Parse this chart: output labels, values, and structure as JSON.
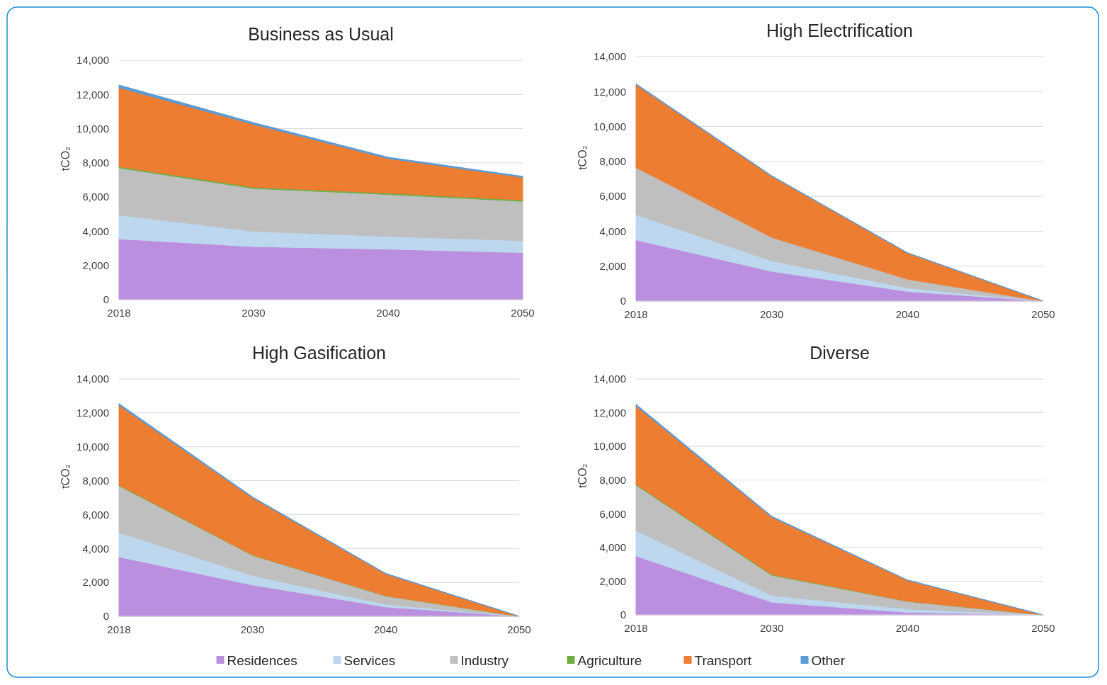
{
  "chart_data": [
    {
      "type": "area",
      "stacked": true,
      "title": "Business as Usual",
      "ylabel": "tCO₂",
      "categories": [
        "2018",
        "2030",
        "2040",
        "2050"
      ],
      "ylim": [
        0,
        14000
      ],
      "yticks": [
        {
          "value": 0,
          "label": "0"
        },
        {
          "value": 2000,
          "label": "2,000"
        },
        {
          "value": 4000,
          "label": "4,000"
        },
        {
          "value": 6000,
          "label": "6,000"
        },
        {
          "value": 8000,
          "label": "8,000"
        },
        {
          "value": 10000,
          "label": "10,000"
        },
        {
          "value": 12000,
          "label": "12,000"
        },
        {
          "value": 14000,
          "label": "14,000"
        }
      ],
      "grid": "y",
      "legend": "bottom",
      "series": [
        {
          "name": "Residences",
          "color": "#bb8fdf",
          "values": [
            3550,
            3100,
            2950,
            2750
          ]
        },
        {
          "name": "Services",
          "color": "#bdd7ee",
          "values": [
            1400,
            900,
            750,
            700
          ]
        },
        {
          "name": "Industry",
          "color": "#bfbfbf",
          "values": [
            2750,
            2500,
            2450,
            2300
          ]
        },
        {
          "name": "Agriculture",
          "color": "#70ad47",
          "values": [
            80,
            80,
            80,
            80
          ]
        },
        {
          "name": "Transport",
          "color": "#ed7d31",
          "values": [
            4620,
            3670,
            2020,
            1320
          ]
        },
        {
          "name": "Other",
          "color": "#5b9bd5",
          "values": [
            150,
            100,
            80,
            60
          ]
        }
      ]
    },
    {
      "type": "area",
      "stacked": true,
      "title": "High Electrification",
      "ylabel": "tCO₂",
      "categories": [
        "2018",
        "2030",
        "2040",
        "2050"
      ],
      "ylim": [
        0,
        14000
      ],
      "yticks": [
        {
          "value": 0,
          "label": "0"
        },
        {
          "value": 2000,
          "label": "2,000"
        },
        {
          "value": 4000,
          "label": "4,000"
        },
        {
          "value": 6000,
          "label": "6,000"
        },
        {
          "value": 8000,
          "label": "8,000"
        },
        {
          "value": 10000,
          "label": "10,000"
        },
        {
          "value": 12000,
          "label": "12,000"
        },
        {
          "value": 14000,
          "label": "14,000"
        }
      ],
      "grid": "y",
      "series": [
        {
          "color": "#bb8fdf",
          "values": [
            3500,
            1700,
            550,
            0
          ]
        },
        {
          "color": "#bdd7ee",
          "values": [
            1450,
            600,
            200,
            0
          ]
        },
        {
          "color": "#bfbfbf",
          "values": [
            2700,
            1350,
            500,
            0
          ]
        },
        {
          "color": "#ed7d31",
          "values": [
            4750,
            3500,
            1500,
            0
          ]
        },
        {
          "color": "#5b9bd5",
          "values": [
            50,
            30,
            20,
            0
          ]
        }
      ]
    },
    {
      "type": "area",
      "stacked": true,
      "title": "High Gasification",
      "ylabel": "tCO₂",
      "categories": [
        "2018",
        "2030",
        "2040",
        "2050"
      ],
      "ylim": [
        0,
        14000
      ],
      "yticks": [
        {
          "value": 0,
          "label": "0"
        },
        {
          "value": 2000,
          "label": "2,000"
        },
        {
          "value": 4000,
          "label": "4,000"
        },
        {
          "value": 6000,
          "label": "6,000"
        },
        {
          "value": 8000,
          "label": "8,000"
        },
        {
          "value": 10000,
          "label": "10,000"
        },
        {
          "value": 12000,
          "label": "12,000"
        },
        {
          "value": 14000,
          "label": "14,000"
        }
      ],
      "grid": "y",
      "series": [
        {
          "color": "#bb8fdf",
          "values": [
            3500,
            1850,
            550,
            0
          ]
        },
        {
          "color": "#bdd7ee",
          "values": [
            1450,
            550,
            150,
            0
          ]
        },
        {
          "color": "#bfbfbf",
          "values": [
            2750,
            1200,
            500,
            0
          ]
        },
        {
          "color": "#70ad47",
          "values": [
            50,
            20,
            10,
            0
          ]
        },
        {
          "color": "#ed7d31",
          "values": [
            4700,
            3380,
            1290,
            0
          ]
        },
        {
          "color": "#5b9bd5",
          "values": [
            100,
            50,
            30,
            0
          ]
        }
      ]
    },
    {
      "type": "area",
      "stacked": true,
      "title": "Diverse",
      "ylabel": "tCO₂",
      "categories": [
        "2018",
        "2030",
        "2040",
        "2050"
      ],
      "ylim": [
        0,
        14000
      ],
      "yticks": [
        {
          "value": 0,
          "label": "0"
        },
        {
          "value": 2000,
          "label": "2,000"
        },
        {
          "value": 4000,
          "label": "4,000"
        },
        {
          "value": 6000,
          "label": "6,000"
        },
        {
          "value": 8000,
          "label": "8,000"
        },
        {
          "value": 10000,
          "label": "10,000"
        },
        {
          "value": 12000,
          "label": "12,000"
        },
        {
          "value": 14000,
          "label": "14,000"
        }
      ],
      "grid": "y",
      "series": [
        {
          "color": "#bb8fdf",
          "values": [
            3500,
            750,
            150,
            0
          ]
        },
        {
          "color": "#bdd7ee",
          "values": [
            1500,
            400,
            200,
            0
          ]
        },
        {
          "color": "#bfbfbf",
          "values": [
            2700,
            1200,
            450,
            0
          ]
        },
        {
          "color": "#70ad47",
          "values": [
            50,
            50,
            10,
            0
          ]
        },
        {
          "color": "#ed7d31",
          "values": [
            4650,
            3400,
            1240,
            0
          ]
        },
        {
          "color": "#5b9bd5",
          "values": [
            100,
            50,
            20,
            0
          ]
        }
      ]
    }
  ]
}
